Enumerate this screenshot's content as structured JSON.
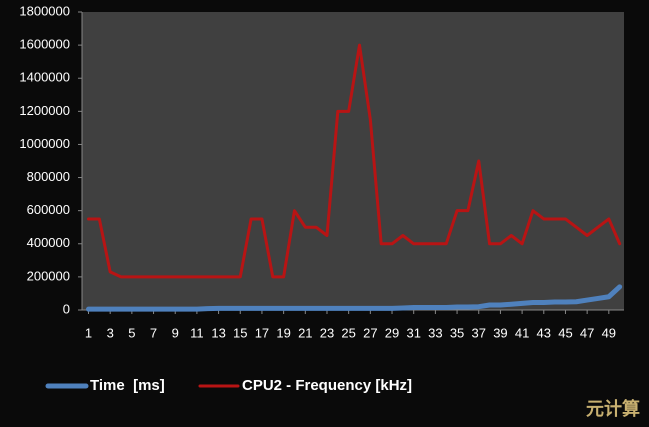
{
  "chart_data": {
    "type": "line",
    "x": [
      1,
      2,
      3,
      4,
      5,
      6,
      7,
      8,
      9,
      10,
      11,
      12,
      13,
      14,
      15,
      16,
      17,
      18,
      19,
      20,
      21,
      22,
      23,
      24,
      25,
      26,
      27,
      28,
      29,
      30,
      31,
      32,
      33,
      34,
      35,
      36,
      37,
      38,
      39,
      40,
      41,
      42,
      43,
      44,
      45,
      46,
      47,
      48,
      49,
      50
    ],
    "xlim": [
      0.4,
      50.4
    ],
    "xticks": [
      1,
      3,
      5,
      7,
      9,
      11,
      13,
      15,
      17,
      19,
      21,
      23,
      25,
      27,
      29,
      31,
      33,
      35,
      37,
      39,
      41,
      43,
      45,
      47,
      49
    ],
    "ylim": [
      0,
      1800000
    ],
    "yticks": [
      0,
      200000,
      400000,
      600000,
      800000,
      1000000,
      1200000,
      1400000,
      1600000,
      1800000
    ],
    "grid": false,
    "legend": "bottom",
    "series": [
      {
        "name": "Time  [ms]",
        "color": "#4f81bd",
        "values": [
          5000,
          5000,
          5000,
          5000,
          5000,
          5000,
          5000,
          5000,
          5000,
          5000,
          5000,
          8000,
          10000,
          10000,
          10000,
          10000,
          10000,
          10000,
          10000,
          10000,
          10000,
          10000,
          10000,
          10000,
          10000,
          10000,
          10000,
          10000,
          10000,
          12000,
          15000,
          15000,
          15000,
          15000,
          18000,
          18000,
          20000,
          30000,
          30000,
          35000,
          40000,
          45000,
          45000,
          48000,
          48000,
          50000,
          60000,
          70000,
          80000,
          140000
        ]
      },
      {
        "name": "CPU2 - Frequency [kHz]",
        "color": "#b81414",
        "values": [
          550000,
          550000,
          230000,
          200000,
          200000,
          200000,
          200000,
          200000,
          200000,
          200000,
          200000,
          200000,
          200000,
          200000,
          200000,
          550000,
          550000,
          200000,
          200000,
          600000,
          500000,
          500000,
          450000,
          1200000,
          1200000,
          1600000,
          1150000,
          400000,
          400000,
          450000,
          400000,
          400000,
          400000,
          400000,
          600000,
          600000,
          900000,
          400000,
          400000,
          450000,
          400000,
          600000,
          550000,
          550000,
          550000,
          500000,
          450000,
          500000,
          550000,
          400000
        ]
      }
    ]
  },
  "watermark": "元计算"
}
